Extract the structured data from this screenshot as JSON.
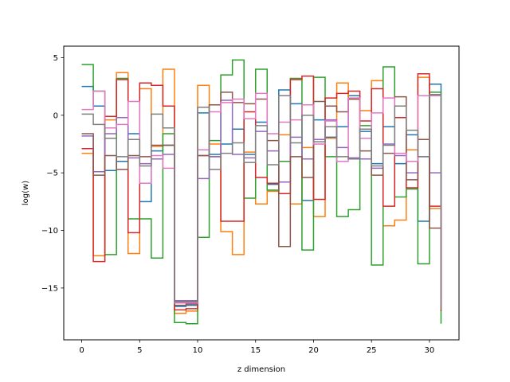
{
  "chart_data": {
    "type": "line",
    "step": "post",
    "title": "",
    "xlabel": "z dimension",
    "ylabel": "log(w)",
    "xlim": [
      -1.55,
      32.55
    ],
    "ylim": [
      -19.5,
      6.0
    ],
    "xticks": [
      0,
      5,
      10,
      15,
      20,
      25,
      30
    ],
    "yticks": [
      5,
      0,
      -5,
      -10,
      -15
    ],
    "ytick_labels": [
      "5",
      "0",
      "−5",
      "−10",
      "−15"
    ],
    "grid": false,
    "legend": "none",
    "x": [
      0,
      1,
      2,
      3,
      4,
      5,
      6,
      7,
      8,
      9,
      10,
      11,
      12,
      13,
      14,
      15,
      16,
      17,
      18,
      19,
      20,
      21,
      22,
      23,
      24,
      25,
      26,
      27,
      28,
      29,
      30,
      31
    ],
    "series": [
      {
        "color": "#1f77b4",
        "values": [
          2.5,
          0.8,
          -4.8,
          -4.0,
          -1.6,
          -7.5,
          -3.1,
          -2.6,
          -16.6,
          -16.5,
          0.2,
          -3.4,
          -2.5,
          -1.2,
          -3.4,
          -0.6,
          -6.0,
          2.2,
          1.0,
          -7.4,
          -0.4,
          -1.9,
          -1.0,
          1.7,
          -1.4,
          -4.2,
          -1.0,
          -4.2,
          -1.7,
          -9.2,
          2.7,
          -16.3
        ]
      },
      {
        "color": "#ff7f0e",
        "values": [
          -3.3,
          -12.2,
          -0.4,
          3.7,
          -12.0,
          2.3,
          -2.7,
          4.0,
          -17.2,
          -17.0,
          2.6,
          -2.5,
          -10.1,
          -12.1,
          -3.2,
          -7.7,
          -6.6,
          -1.7,
          -7.7,
          -2.8,
          -8.8,
          -2.0,
          2.8,
          1.4,
          0.4,
          3.0,
          -9.6,
          -9.1,
          -3.0,
          3.3,
          -8.1,
          -17.0
        ]
      },
      {
        "color": "#2ca02c",
        "values": [
          4.4,
          2.1,
          -12.1,
          3.2,
          -9.0,
          -9.0,
          -12.4,
          -1.6,
          -18.0,
          -18.1,
          -10.6,
          -2.2,
          3.5,
          4.8,
          -7.2,
          4.0,
          -6.5,
          -4.0,
          3.2,
          -11.7,
          3.3,
          -3.6,
          -8.8,
          -8.2,
          -0.9,
          -13.0,
          4.2,
          -7.1,
          -6.4,
          -12.9,
          2.0,
          -18.1
        ]
      },
      {
        "color": "#d62728",
        "values": [
          -2.9,
          -12.7,
          -0.1,
          3.1,
          -10.2,
          2.8,
          2.6,
          0.8,
          -16.9,
          -16.8,
          -3.5,
          -3.6,
          -9.2,
          -9.2,
          0.3,
          -5.4,
          -5.9,
          -6.8,
          3.1,
          3.4,
          -7.3,
          1.5,
          1.9,
          2.1,
          -0.5,
          2.3,
          -7.9,
          -0.2,
          -6.3,
          3.6,
          -7.9,
          -17.0
        ]
      },
      {
        "color": "#9467bd",
        "values": [
          -1.8,
          -4.9,
          -1.6,
          -0.2,
          -3.7,
          -4.2,
          -3.8,
          -3.4,
          -16.1,
          -16.1,
          -5.5,
          -3.6,
          1.3,
          -3.4,
          -3.7,
          -1.4,
          -3.1,
          -5.8,
          -1.9,
          -3.8,
          -2.1,
          -0.4,
          -2.8,
          -3.7,
          -3.8,
          -4.6,
          -2.5,
          -3.5,
          -5.0,
          -3.6,
          -5.0,
          -16.8
        ]
      },
      {
        "color": "#8c564b",
        "values": [
          -1.6,
          -5.2,
          -3.5,
          -4.7,
          -3.5,
          -3.6,
          -2.6,
          -2.6,
          -16.5,
          -16.4,
          -3.5,
          0.9,
          2.0,
          1.1,
          1.0,
          1.4,
          -2.2,
          -11.4,
          -3.6,
          -5.4,
          1.2,
          0.8,
          0.3,
          1.4,
          -3.1,
          -5.2,
          -3.3,
          1.6,
          -5.6,
          -2.1,
          -9.8,
          -16.1
        ]
      },
      {
        "color": "#e377c2",
        "values": [
          0.5,
          2.1,
          -1.1,
          -0.8,
          1.2,
          -5.9,
          -3.5,
          -4.6,
          -16.3,
          -16.3,
          -3.0,
          0.3,
          1.1,
          1.4,
          -0.3,
          1.9,
          -1.6,
          -0.6,
          -0.4,
          0.9,
          -2.5,
          -0.5,
          -4.0,
          1.5,
          -2.0,
          0.2,
          1.5,
          -3.3,
          -4.0,
          1.7,
          1.7,
          -16.5
        ]
      },
      {
        "color": "#7f7f7f",
        "values": [
          0.1,
          -0.8,
          -2.0,
          -3.6,
          -2.1,
          -4.4,
          0.1,
          -1.1,
          -16.2,
          -16.2,
          0.7,
          -4.7,
          -3.3,
          -2.4,
          -4.1,
          -0.9,
          -4.3,
          1.7,
          -2.4,
          0.0,
          -2.3,
          -1.0,
          -3.6,
          -3.8,
          -1.2,
          -4.4,
          -2.6,
          0.8,
          -1.3,
          -3.6,
          1.8,
          -16.9
        ]
      }
    ]
  }
}
